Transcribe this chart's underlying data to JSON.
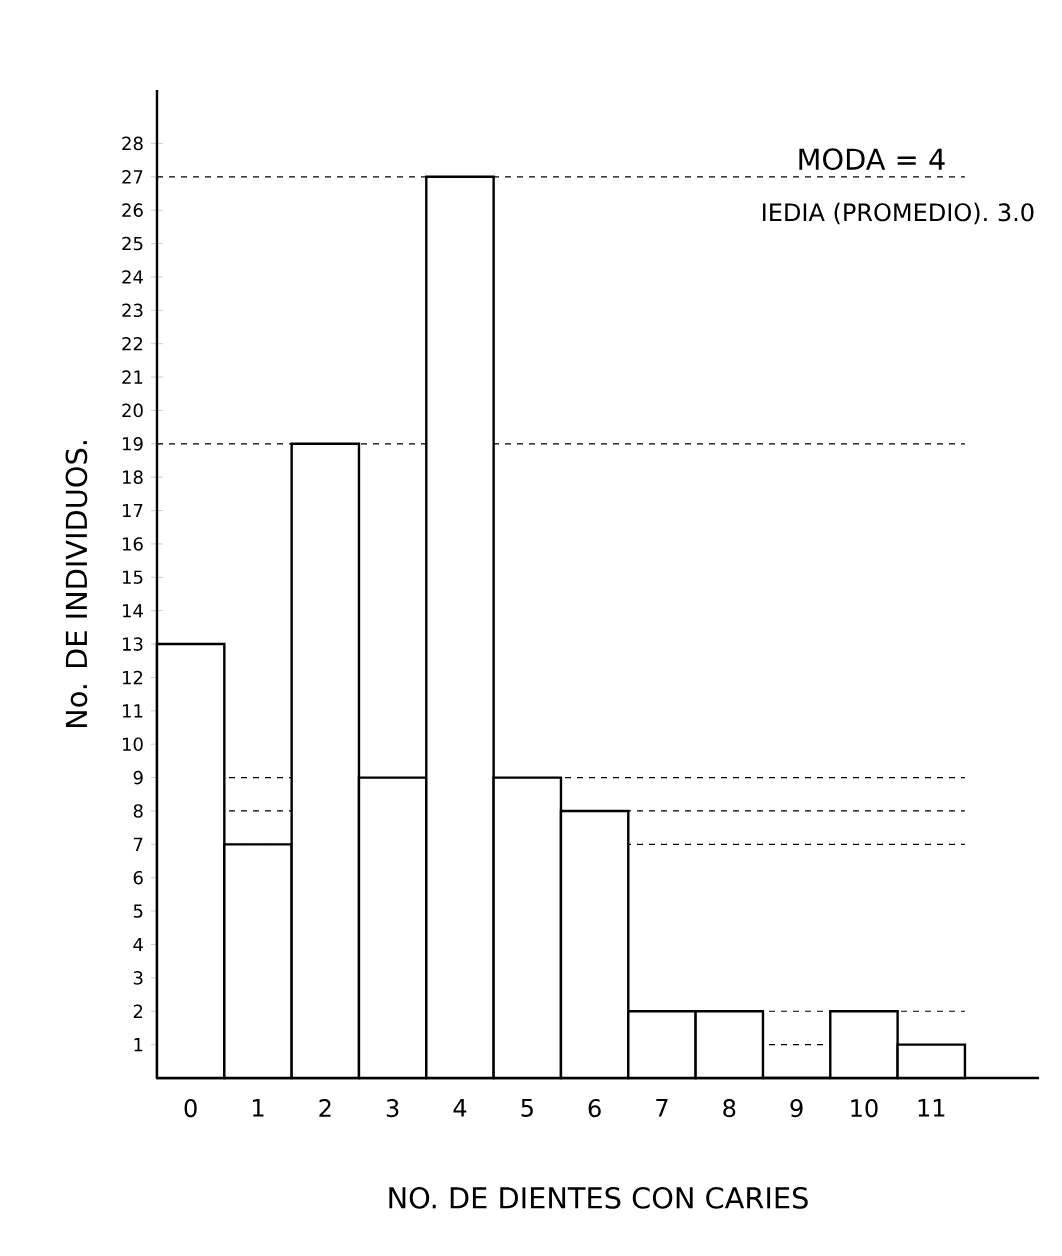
{
  "chart_data": {
    "type": "bar",
    "xlabel": "NO. DE DIENTES CON CARIES",
    "ylabel": "No. DE INDIVIDUOS.",
    "categories": [
      "0",
      "1",
      "2",
      "3",
      "4",
      "5",
      "6",
      "7",
      "8",
      "9",
      "10",
      "11"
    ],
    "values": [
      13,
      7,
      19,
      9,
      27,
      9,
      8,
      2,
      2,
      0,
      2,
      1
    ],
    "color": "#000000",
    "ylim": [
      0,
      29.6
    ],
    "yticks": [
      1,
      2,
      3,
      4,
      5,
      6,
      7,
      8,
      9,
      10,
      11,
      12,
      13,
      14,
      15,
      16,
      17,
      18,
      19,
      20,
      21,
      22,
      23,
      24,
      25,
      26,
      27,
      28
    ],
    "grid": false,
    "ref_lines": [
      {
        "axis": "y",
        "value": 27,
        "line_style": "dashed"
      },
      {
        "axis": "y",
        "value": 19,
        "line_style": "dashed"
      },
      {
        "axis": "y",
        "value": 9,
        "line_style": "dashed"
      },
      {
        "axis": "y",
        "value": 8,
        "line_style": "dashed"
      },
      {
        "axis": "y",
        "value": 7,
        "line_style": "dashed"
      },
      {
        "axis": "y",
        "value": 2,
        "line_style": "dashed"
      },
      {
        "axis": "y",
        "value": 1,
        "line_style": "dashed"
      }
    ],
    "annotations": [
      "MODA = 4",
      "IEDIA (PROMEDIO). 3.0"
    ]
  }
}
